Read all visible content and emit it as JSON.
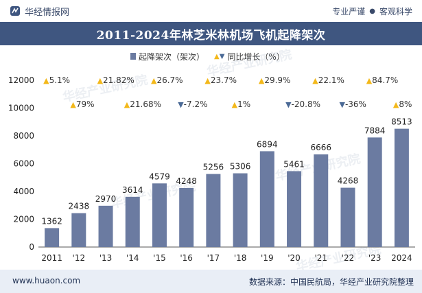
{
  "header": {
    "brand": "华经情报网",
    "tag1": "专业严谨",
    "tag2": "客观科学",
    "separator": "●"
  },
  "title": "2011-2024年林芝米林机场飞机起降架次",
  "legend": {
    "bar_label": "起降架次（架次）",
    "line_label": "同比增长（%）"
  },
  "watermark": "华经产业研究院",
  "footer": {
    "website": "www.huaon.com",
    "source": "数据来源：中国民航局，华经产业研究院整理"
  },
  "colors": {
    "bar": "#6b7ba1",
    "up": "#f3b81a",
    "down": "#4b6a96",
    "title_bg": "#3f5680",
    "footer_bg": "#e9eef6"
  },
  "chart_data": {
    "type": "bar",
    "title": "2011-2024年林芝米林机场飞机起降架次",
    "categories": [
      "2011",
      "'12",
      "'13",
      "'14",
      "'15",
      "'16",
      "'17",
      "'18",
      "'19",
      "'20",
      "'21",
      "'22",
      "'23",
      "2024"
    ],
    "series": [
      {
        "name": "起降架次（架次）",
        "values": [
          1362,
          2438,
          2970,
          3614,
          4579,
          4248,
          5256,
          5306,
          6894,
          5461,
          6666,
          4268,
          7884,
          8513
        ]
      },
      {
        "name": "同比增长（%）",
        "growth": [
          null,
          79,
          21.82,
          21.68,
          26.7,
          -7.2,
          23.7,
          1,
          29.9,
          -20.8,
          22.1,
          -36,
          84.7,
          8
        ],
        "labels": [
          "",
          "79%",
          "21.82%",
          "21.68%",
          "26.7%",
          "-7.2%",
          "23.7%",
          "1%",
          "29.9%",
          "-20.8%",
          "22.1%",
          "-36%",
          "84.7%",
          "8%"
        ]
      }
    ],
    "extra_label": "5.1%",
    "y_ticks": [
      "0",
      "2000",
      "4000",
      "6000",
      "8000",
      "10000",
      "12000"
    ],
    "ylim": [
      0,
      12000
    ],
    "legend_position": "top"
  }
}
